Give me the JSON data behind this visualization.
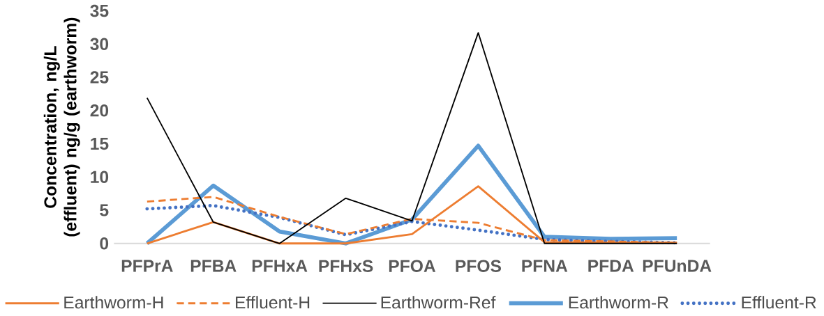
{
  "chart_data": {
    "type": "line",
    "ylabel": "Concentration, ng/L (effluent) ng/g (earthworm)",
    "categories": [
      "PFPrA",
      "PFBA",
      "PFHxA",
      "PFHxS",
      "PFOA",
      "PFOS",
      "PFNA",
      "PFDA",
      "PFUnDA"
    ],
    "series": [
      {
        "name": "Earthworm-H",
        "color": "#ed7d31",
        "line_style": "solid",
        "values": [
          0,
          3.2,
          0,
          0,
          1.4,
          8.6,
          0.2,
          0.1,
          0.1
        ]
      },
      {
        "name": "Effluent-H",
        "color": "#ed7d31",
        "line_style": "dashed",
        "values": [
          6.3,
          7.0,
          4.0,
          1.4,
          3.7,
          3.1,
          0.5,
          0.3,
          0.1
        ]
      },
      {
        "name": "Earthworm-Ref",
        "color": "#000000",
        "line_style": "solid",
        "values": [
          21.9,
          3.2,
          0,
          6.8,
          3.4,
          31.7,
          0,
          0,
          0
        ]
      },
      {
        "name": "Earthworm-R",
        "color": "#5b9bd5",
        "line_style": "solid",
        "values": [
          0,
          8.7,
          1.8,
          0,
          3.6,
          14.7,
          1.0,
          0.7,
          0.8
        ]
      },
      {
        "name": "Effluent-R",
        "color": "#4472c4",
        "line_style": "dotted",
        "values": [
          5.2,
          5.7,
          3.9,
          1.3,
          3.3,
          2.0,
          0.6,
          0.3,
          0.1
        ]
      }
    ],
    "ylim": [
      0,
      35
    ],
    "yticks": [
      0,
      5,
      10,
      15,
      20,
      25,
      30,
      35
    ],
    "grid": false,
    "legend": "bottom",
    "marker": "none"
  }
}
